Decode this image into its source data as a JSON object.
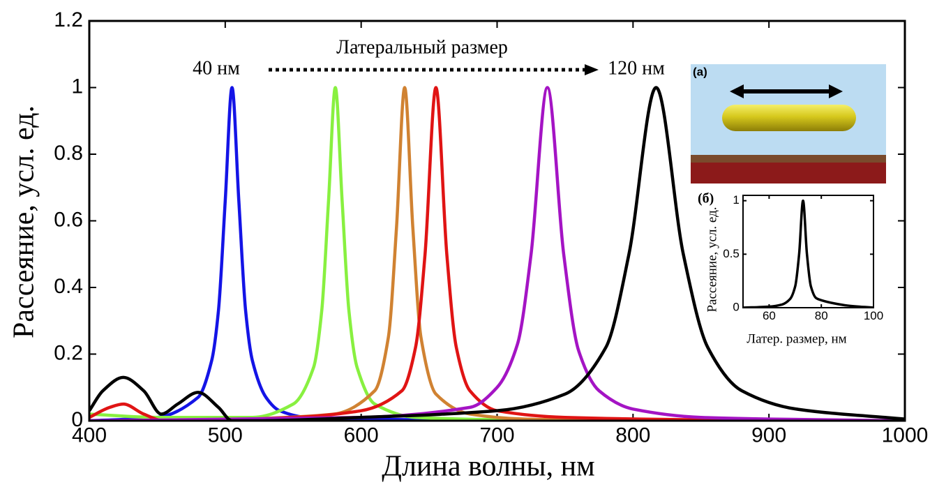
{
  "chart_data": [
    {
      "type": "line",
      "xlabel": "Длина волны, нм",
      "ylabel": "Рассеяние, усл. ед.",
      "annotations": [
        "40 нм",
        "Латеральный размер",
        "120 нм"
      ],
      "xlim": [
        400,
        1000
      ],
      "ylim": [
        0,
        1.2
      ],
      "xticks": [
        400,
        500,
        600,
        700,
        800,
        900,
        1000
      ],
      "yticks": [
        0,
        0.2,
        0.4,
        0.6,
        0.8,
        1,
        1.2
      ],
      "grid": false,
      "series": [
        {
          "color": "#1414e6",
          "x": [
            400,
            450,
            480,
            490,
            495,
            500,
            505,
            510,
            515,
            520,
            530,
            540,
            560,
            600,
            700
          ],
          "values": [
            0,
            0.01,
            0.07,
            0.18,
            0.33,
            0.66,
            1,
            0.66,
            0.33,
            0.18,
            0.07,
            0.03,
            0.01,
            0.005,
            0
          ]
        },
        {
          "color": "#88f040",
          "x": [
            400,
            450,
            520,
            550,
            565,
            571,
            576,
            581,
            586,
            591,
            597,
            610,
            640,
            700,
            800
          ],
          "values": [
            0.02,
            0.01,
            0.01,
            0.05,
            0.16,
            0.33,
            0.66,
            1,
            0.66,
            0.33,
            0.16,
            0.05,
            0.01,
            0.003,
            0
          ]
        },
        {
          "color": "#d08232",
          "x": [
            520,
            580,
            610,
            620,
            626,
            632,
            638,
            644,
            655,
            680,
            720,
            800
          ],
          "values": [
            0.005,
            0.02,
            0.09,
            0.25,
            0.58,
            1,
            0.58,
            0.25,
            0.08,
            0.02,
            0.005,
            0
          ]
        },
        {
          "color": "#e01414",
          "x": [
            400,
            415,
            425,
            440,
            455,
            470,
            550,
            600,
            630,
            640,
            647,
            655,
            663,
            670,
            680,
            700,
            750,
            850,
            1000
          ],
          "values": [
            0.01,
            0.04,
            0.05,
            0.02,
            0,
            0,
            0.01,
            0.03,
            0.09,
            0.22,
            0.5,
            1,
            0.5,
            0.22,
            0.09,
            0.03,
            0.01,
            0.003,
            0
          ]
        },
        {
          "color": "#a414c4",
          "x": [
            400,
            600,
            680,
            700,
            715,
            725,
            737,
            749,
            760,
            775,
            800,
            850,
            900,
            1000
          ],
          "values": [
            0,
            0.01,
            0.04,
            0.1,
            0.23,
            0.5,
            1,
            0.5,
            0.21,
            0.09,
            0.035,
            0.01,
            0.005,
            0
          ]
        },
        {
          "color": "#000000",
          "x": [
            400,
            410,
            425,
            440,
            453,
            465,
            480,
            495,
            505,
            520,
            600,
            700,
            750,
            780,
            797,
            817,
            837,
            855,
            880,
            920,
            1000
          ],
          "values": [
            0.03,
            0.09,
            0.13,
            0.09,
            0.02,
            0.05,
            0.085,
            0.04,
            0,
            0,
            0.01,
            0.03,
            0.08,
            0.22,
            0.5,
            1,
            0.5,
            0.22,
            0.09,
            0.035,
            0.005
          ]
        }
      ]
    },
    {
      "type": "line",
      "panel_label": "(б)",
      "xlabel": "Латер. размер, нм",
      "ylabel": "Рассеяние, усл. ед.",
      "xlim": [
        50,
        100
      ],
      "ylim": [
        0,
        1.05
      ],
      "xticks": [
        60,
        80,
        100
      ],
      "yticks": [
        0,
        0.5,
        1
      ],
      "series": [
        {
          "color": "#000000",
          "x": [
            50,
            60,
            65,
            68,
            70,
            71.5,
            73,
            74.5,
            76,
            78,
            80,
            85,
            90,
            100
          ],
          "values": [
            0,
            0.01,
            0.03,
            0.08,
            0.2,
            0.5,
            1,
            0.5,
            0.2,
            0.09,
            0.07,
            0.04,
            0.02,
            0
          ]
        }
      ]
    }
  ],
  "inset_a": {
    "label": "(a)"
  }
}
